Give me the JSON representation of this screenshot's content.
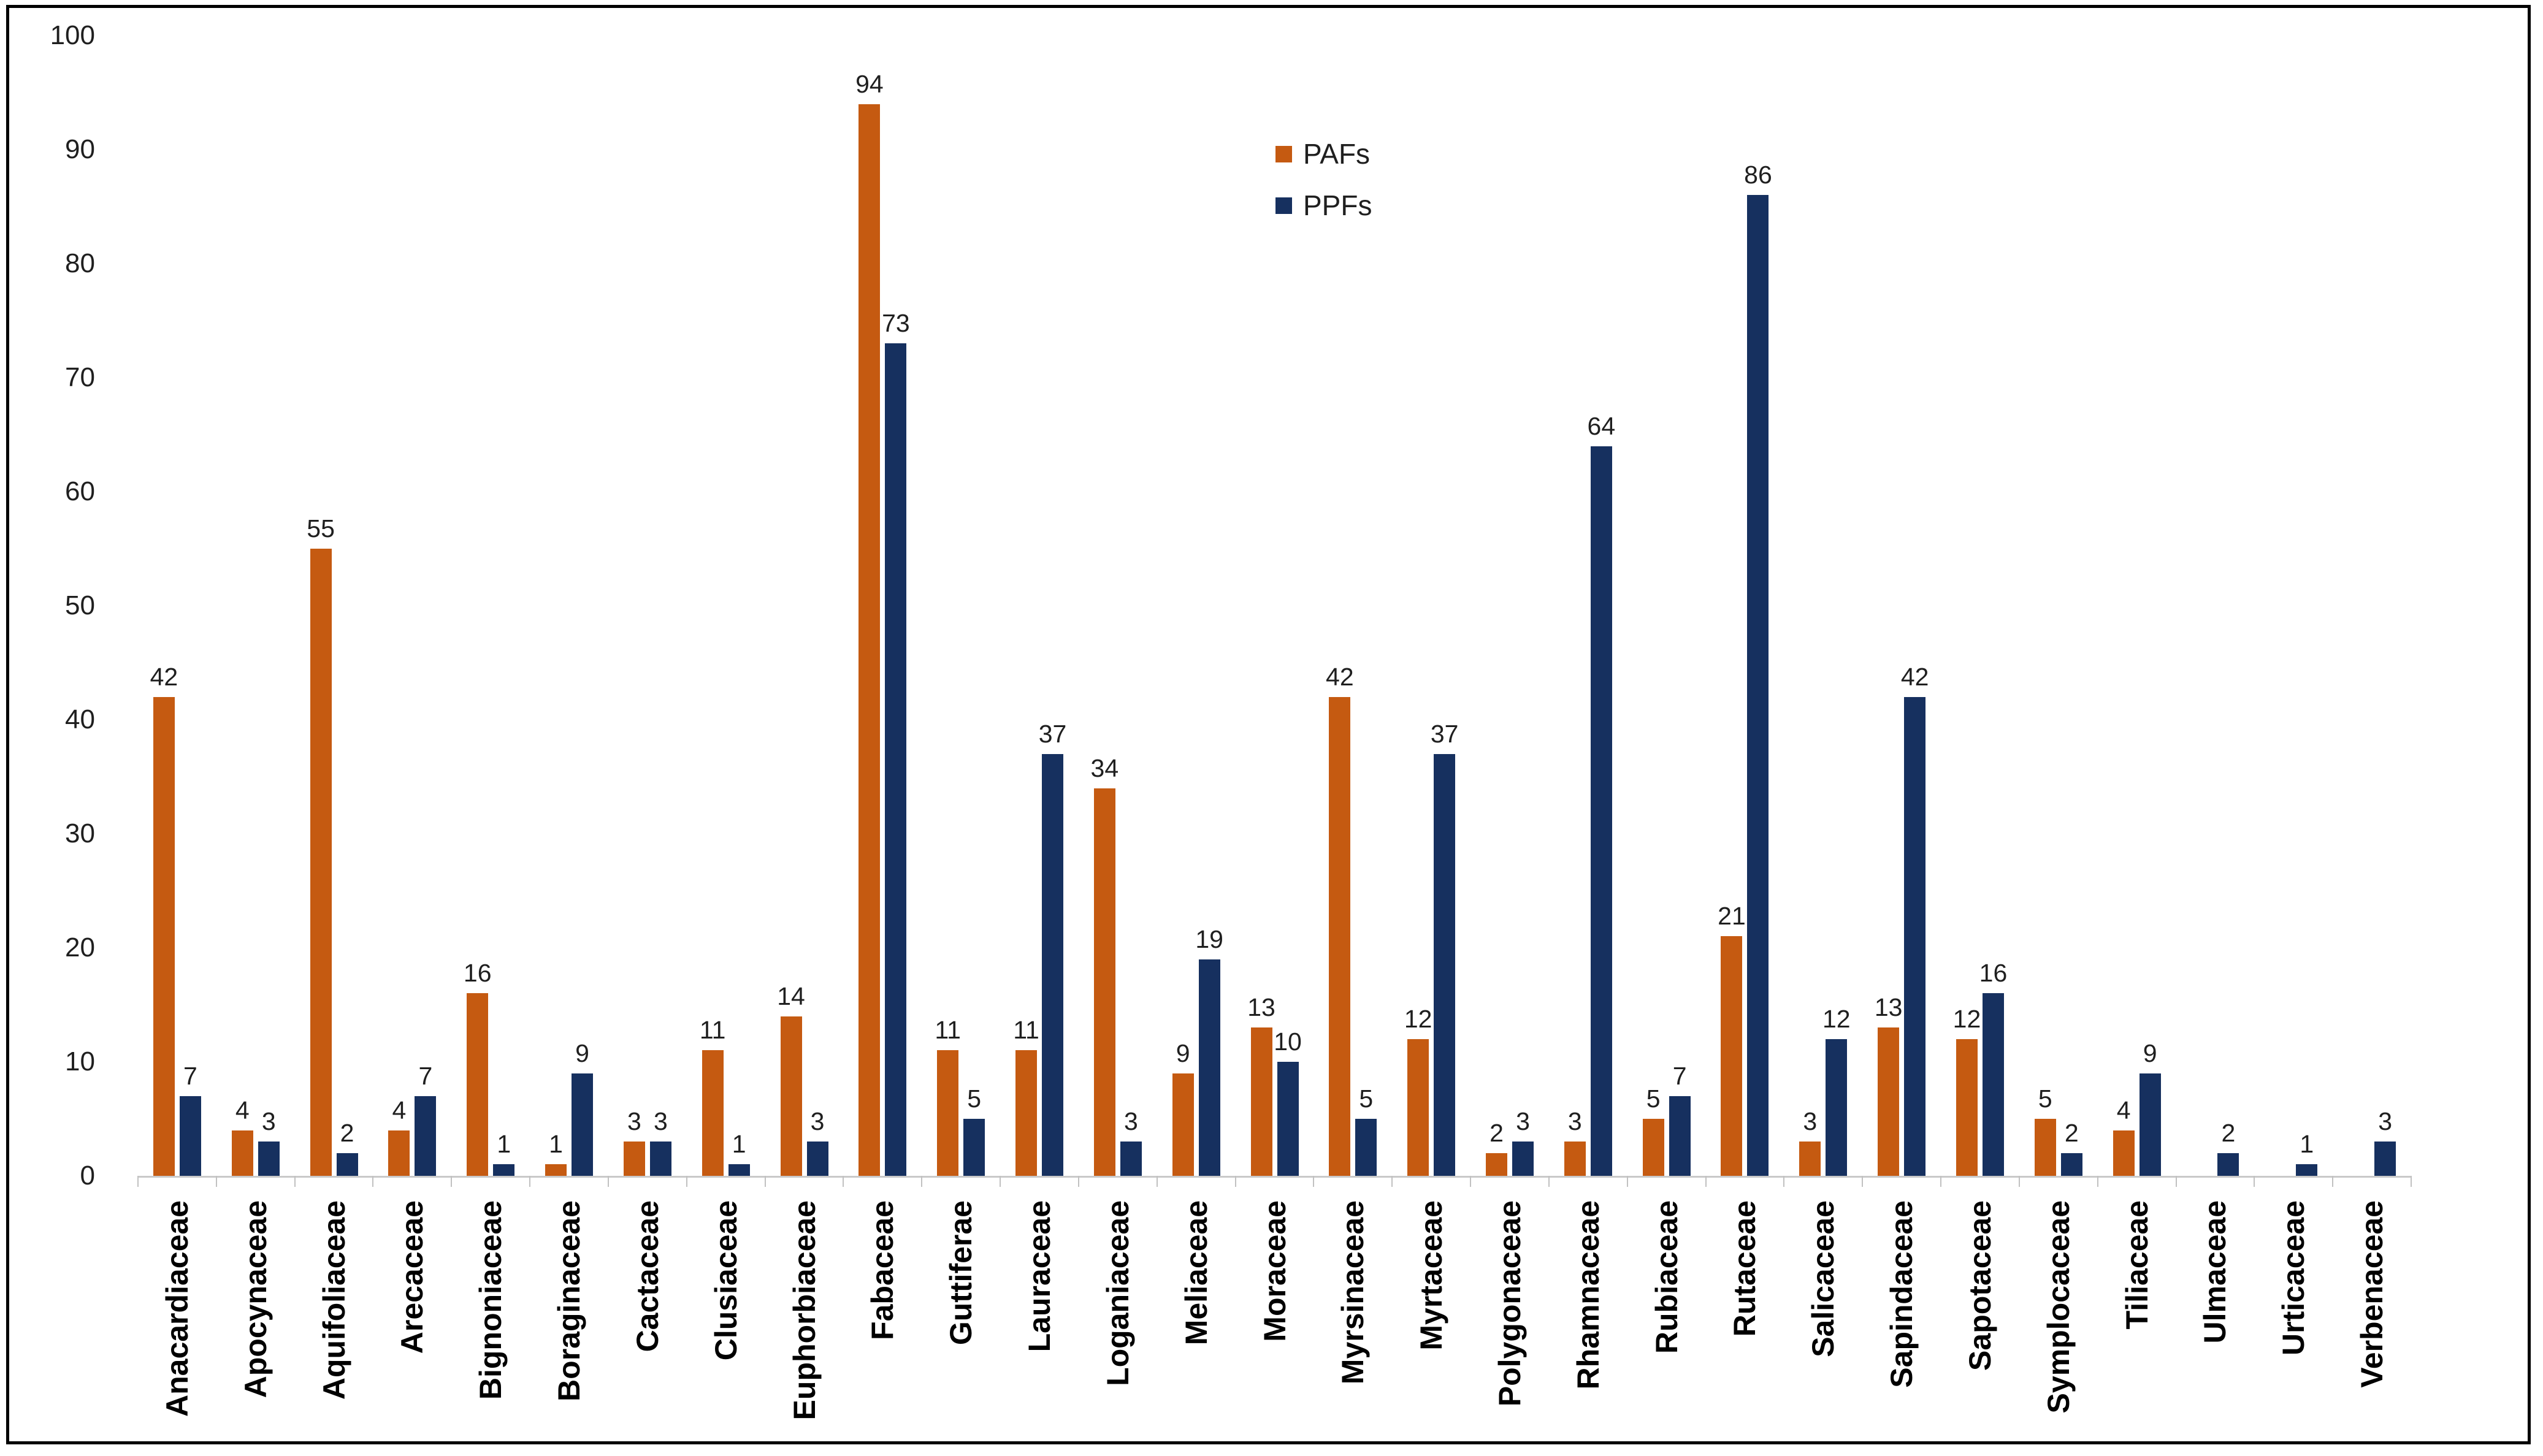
{
  "figure": {
    "background": "#FFFFFF",
    "border_color": "#000000",
    "axis_color": "#C9C9C9",
    "text_color": "#1F1F1F"
  },
  "legend": {
    "position": "inside-top-center",
    "orientation": "vertical"
  },
  "chart_data": {
    "type": "bar",
    "title": "",
    "xlabel": "",
    "ylabel": "",
    "ylim": [
      0,
      100
    ],
    "ytick_step": 10,
    "grid": false,
    "data_labels": "value above each bar; zero values have no bar and no label",
    "legend_position": "inside top-center",
    "categories": [
      "Anacardiaceae",
      "Apocynaceae",
      "Aquifoliaceae",
      "Arecaceae",
      "Bignoniaceae",
      "Boraginaceae",
      "Cactaceae",
      "Clusiaceae",
      "Euphorbiaceae",
      "Fabaceae",
      "Guttiferae",
      "Lauraceae",
      "Loganiaceae",
      "Meliaceae",
      "Moraceae",
      "Myrsinaceae",
      "Myrtaceae",
      "Polygonaceae",
      "Rhamnaceae",
      "Rubiaceae",
      "Rutaceae",
      "Salicaceae",
      "Sapindaceae",
      "Sapotaceae",
      "Symplocaceae",
      "Tiliaceae",
      "Ulmaceae",
      "Urticaceae",
      "Verbenaceae"
    ],
    "series": [
      {
        "name": "PAFs",
        "color": "#C55A11",
        "values": [
          42,
          4,
          55,
          4,
          16,
          1,
          3,
          11,
          14,
          94,
          11,
          11,
          34,
          9,
          13,
          42,
          12,
          2,
          3,
          5,
          21,
          3,
          13,
          12,
          5,
          4,
          0,
          0,
          0
        ]
      },
      {
        "name": "PPFs",
        "color": "#16305F",
        "values": [
          7,
          3,
          2,
          7,
          1,
          9,
          3,
          1,
          3,
          73,
          5,
          37,
          3,
          19,
          10,
          5,
          37,
          3,
          64,
          7,
          86,
          12,
          42,
          16,
          2,
          9,
          2,
          1,
          3
        ]
      }
    ]
  }
}
